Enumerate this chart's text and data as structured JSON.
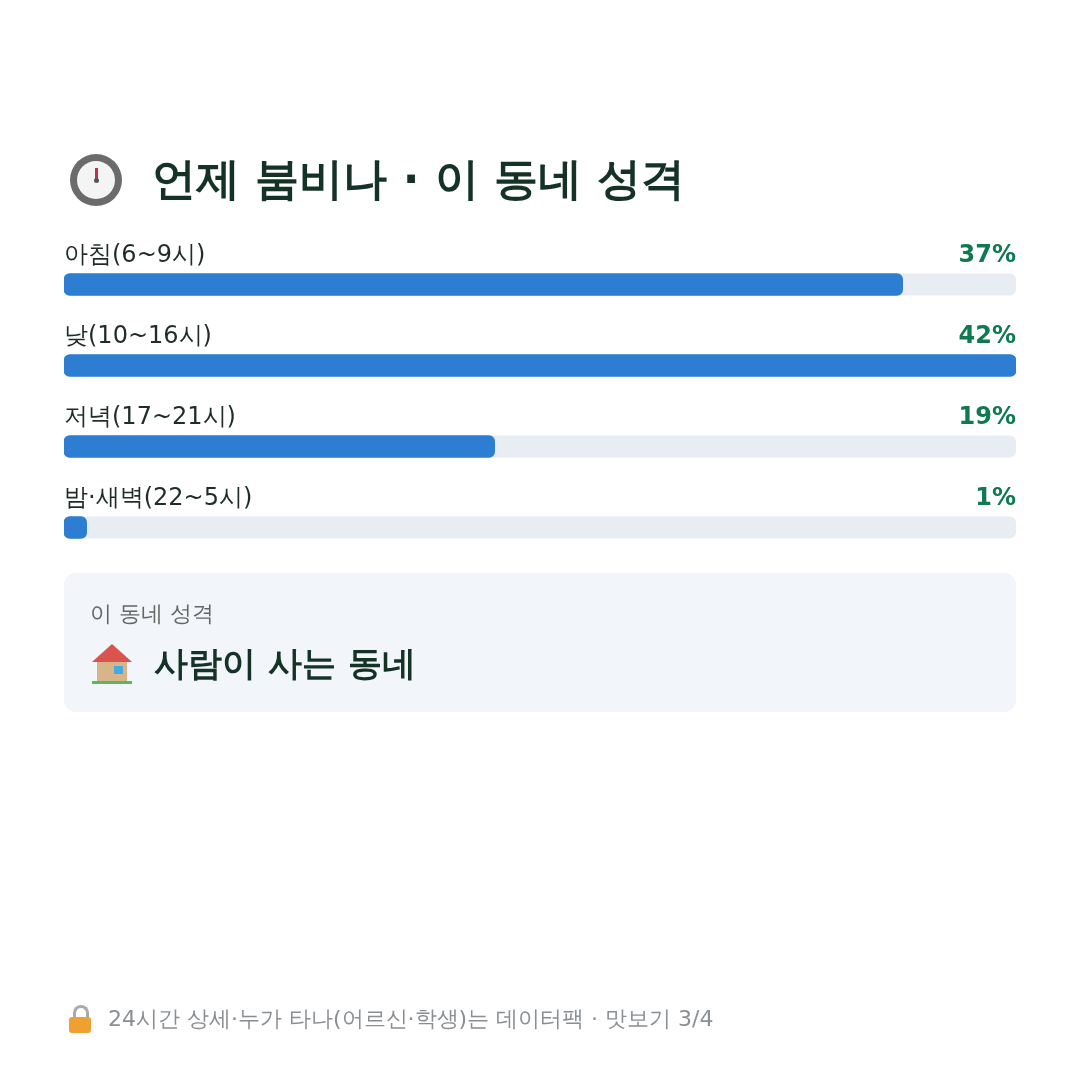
{
  "chart_data": {
    "type": "bar",
    "orientation": "horizontal",
    "title": "언제 붐비나 · 이 동네 성격",
    "categories": [
      "아침(6~9시)",
      "낮(10~16시)",
      "저녁(17~21시)",
      "밤·새벽(22~5시)"
    ],
    "values": [
      37,
      42,
      19,
      1
    ],
    "value_labels": [
      "37%",
      "42%",
      "19%",
      "1%"
    ],
    "color": "#2d7dd2",
    "legend": false,
    "annotations": [
      "이 동네 성격",
      "사람이 사는 동네",
      "24시간 상세·누가 타나(어르신·학생)는 데이터팩 · 맛보기 3/4"
    ]
  }
}
